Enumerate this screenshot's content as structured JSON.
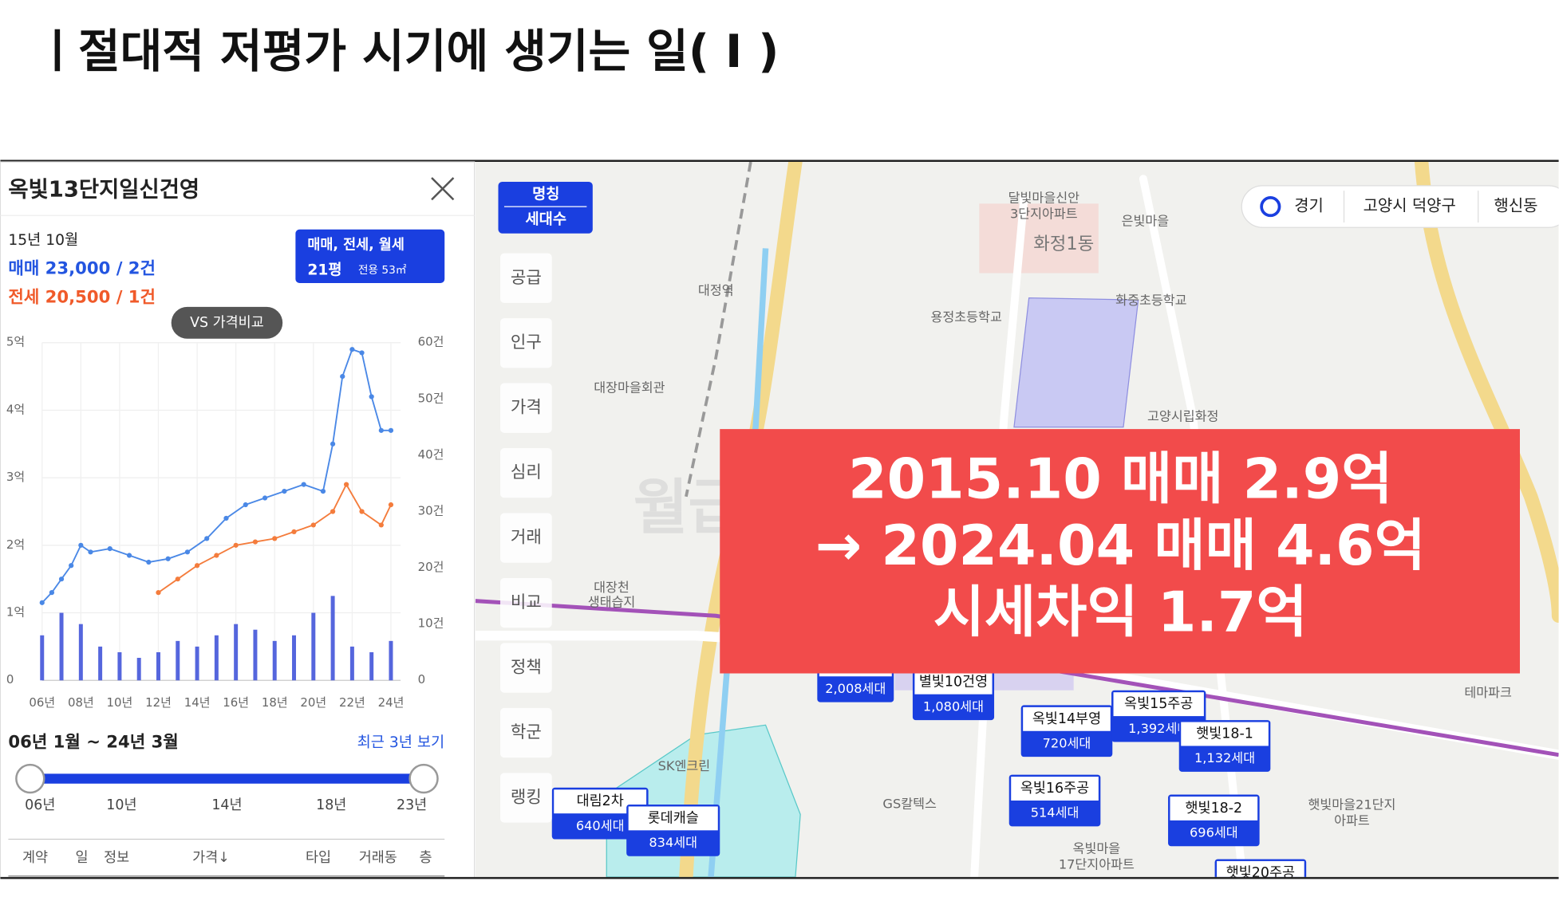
{
  "header": {
    "title": "ㅣ절대적 저평가 시기에 생기는 일( Ⅰ )"
  },
  "panel": {
    "name": "옥빛13단지일신건영",
    "date": "15년 10월",
    "sale": "매매 23,000 / 2건",
    "jeonse": "전세 20,500 / 1건",
    "filter": "매매, 전세, 월세",
    "area": "21평",
    "area_sub": "전용 53㎡",
    "compare": "VS 가격비교",
    "range": "06년 1월 ~ 24년 3월",
    "recent": "최근 3년 보기",
    "slider_ticks": [
      "06년",
      "10년",
      "14년",
      "18년",
      "23년"
    ],
    "table_header": [
      "계약",
      "일",
      "정보",
      "가격↓",
      "타입",
      "거래동",
      "층"
    ]
  },
  "price_chart": {
    "type": "line",
    "xlim": [
      2006,
      2024.5
    ],
    "xticks": [
      {
        "value": 2006,
        "label": "06년"
      },
      {
        "value": 2008,
        "label": "08년"
      },
      {
        "value": 2010,
        "label": "10년"
      },
      {
        "value": 2012,
        "label": "12년"
      },
      {
        "value": 2014,
        "label": "14년"
      },
      {
        "value": 2016,
        "label": "16년"
      },
      {
        "value": 2018,
        "label": "18년"
      },
      {
        "value": 2020,
        "label": "20년"
      },
      {
        "value": 2022,
        "label": "22년"
      },
      {
        "value": 2024,
        "label": "24년"
      }
    ],
    "ylim": [
      0,
      5
    ],
    "yticks": [
      0,
      {
        "value": 1,
        "label": "1억"
      },
      {
        "value": 2,
        "label": "2억"
      },
      {
        "value": 3,
        "label": "3억"
      },
      {
        "value": 4,
        "label": "4억"
      },
      {
        "value": 5,
        "label": "5억"
      }
    ],
    "y2lim": [
      0,
      60
    ],
    "y2ticks": [
      0,
      {
        "value": 10,
        "label": "10건"
      },
      {
        "value": 20,
        "label": "20건"
      },
      {
        "value": 30,
        "label": "30건"
      },
      {
        "value": 40,
        "label": "40건"
      },
      {
        "value": 50,
        "label": "50건"
      },
      {
        "value": 60,
        "label": "60건"
      }
    ],
    "grid": true,
    "series": [
      {
        "color": "#4a88e6",
        "x": [
          2006.0,
          2006.5,
          2007.0,
          2007.5,
          2008.0,
          2008.5,
          2009.5,
          2010.5,
          2011.5,
          2012.5,
          2013.5,
          2014.5,
          2015.5,
          2016.5,
          2017.5,
          2018.5,
          2019.5,
          2020.5,
          2021.0,
          2021.5,
          2022.0,
          2022.5,
          2023.0,
          2023.5,
          2024.0
        ],
        "values": [
          1.15,
          1.3,
          1.5,
          1.7,
          2.0,
          1.9,
          1.95,
          1.85,
          1.75,
          1.8,
          1.9,
          2.1,
          2.4,
          2.6,
          2.7,
          2.8,
          2.9,
          2.8,
          3.5,
          4.5,
          4.9,
          4.85,
          4.2,
          3.7,
          3.7
        ]
      },
      {
        "color": "#f47c3c",
        "x": [
          2012.0,
          2013.0,
          2014.0,
          2015.0,
          2016.0,
          2017.0,
          2018.0,
          2019.0,
          2020.0,
          2021.0,
          2021.7,
          2022.5,
          2023.5,
          2024.0
        ],
        "values": [
          1.3,
          1.5,
          1.7,
          1.85,
          2.0,
          2.05,
          2.1,
          2.2,
          2.3,
          2.5,
          2.9,
          2.5,
          2.3,
          2.6
        ]
      },
      {
        "axis": "y2",
        "color": "#5566dd",
        "x": [
          2006,
          2007,
          2008,
          2009,
          2010,
          2011,
          2012,
          2013,
          2014,
          2015,
          2016,
          2017,
          2018,
          2019,
          2020,
          2021,
          2022,
          2023,
          2024
        ],
        "values": [
          8,
          12,
          10,
          6,
          5,
          4,
          5,
          7,
          6,
          8,
          10,
          9,
          7,
          8,
          12,
          15,
          6,
          5,
          7
        ]
      }
    ]
  },
  "map": {
    "view_buttons": [
      "명칭",
      "세대수"
    ],
    "side_menu": [
      "공급",
      "인구",
      "가격",
      "심리",
      "거래",
      "비교",
      "정책",
      "학군",
      "랭킹"
    ],
    "location": [
      "경기",
      "고양시 덕양구",
      "행신동"
    ],
    "places": [
      "달빛마을신안",
      "3단지아파트",
      "은빛마을",
      "화정1동",
      "대정역",
      "용정초등학교",
      "화중초등학교",
      "대장마을회관",
      "고양시립화정",
      "대장천",
      "생태습지",
      "SK엔크린",
      "GS칼텍스",
      "옥빛마을",
      "17단지아파트",
      "햇빛마을21단지",
      "아파트",
      "테마파크"
    ],
    "markers": [
      {
        "name": "대림2차",
        "count": "640세대"
      },
      {
        "name": "롯데캐슬",
        "count": "834세대"
      },
      {
        "name": "옥빛14부영",
        "count": "720세대"
      },
      {
        "name": "옥빛15주공",
        "count": "1,392세대"
      },
      {
        "name": "햇빛18-1",
        "count": "1,132세대"
      },
      {
        "name": "옥빛16주공",
        "count": "514세대"
      },
      {
        "name": "햇빛18-2",
        "count": "696세대"
      },
      {
        "name": "별빛10건영",
        "count": "1,080세대"
      },
      {
        "count": "2,008세대"
      },
      {
        "name": "햇빛20주공"
      }
    ],
    "watermark": "월급쟁이부자들"
  },
  "overlay": {
    "lines": [
      "2015.10 매매 2.9억",
      "→ 2024.04 매매 4.6억",
      "시세차익 1.7억"
    ]
  }
}
